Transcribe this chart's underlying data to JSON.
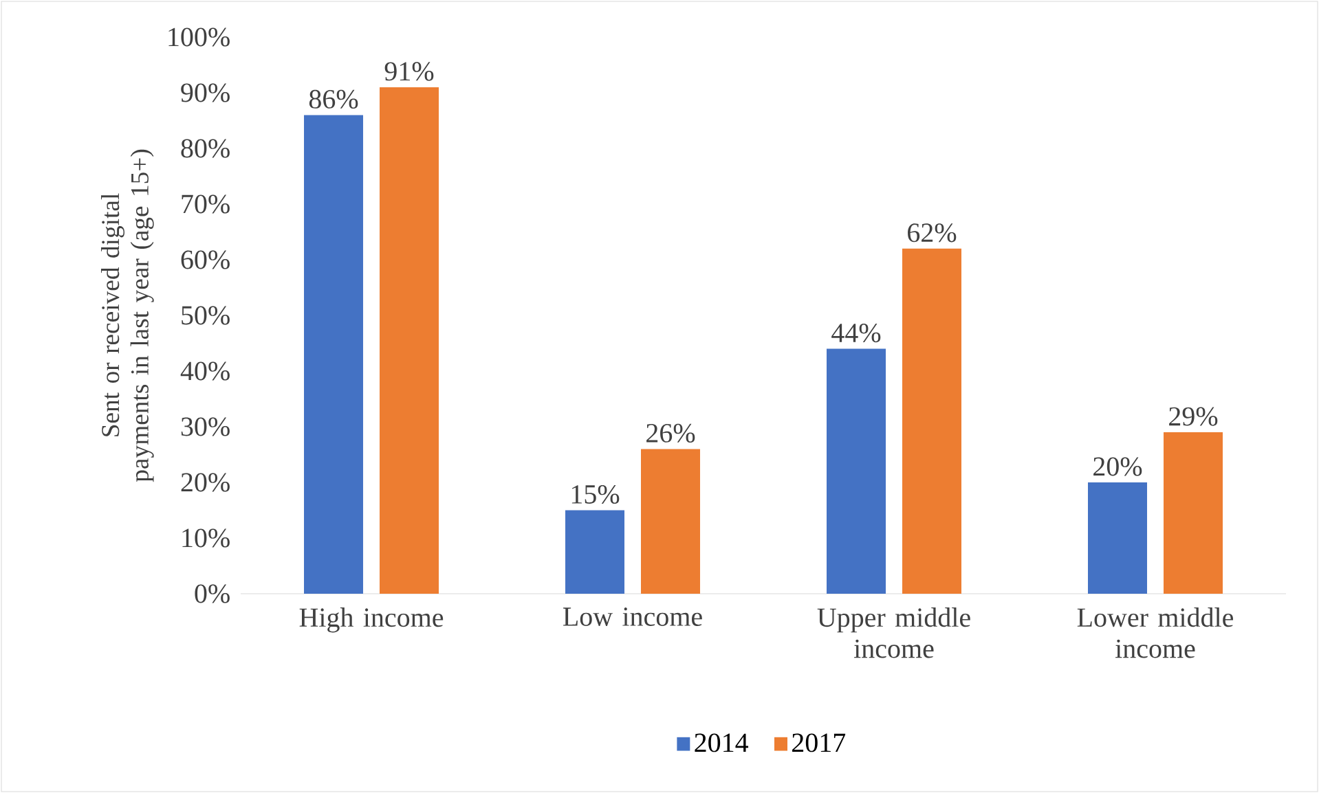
{
  "chart_data": {
    "type": "bar",
    "ylabel": "Sent or received digital payments in last year (age 15+)",
    "categories": [
      "High income",
      "Low income",
      "Upper middle income",
      "Lower middle income"
    ],
    "series": [
      {
        "name": "2014",
        "color": "#4472c4",
        "values": [
          86,
          15,
          44,
          20
        ],
        "value_labels": [
          "86%",
          "15%",
          "44%",
          "20%"
        ]
      },
      {
        "name": "2017",
        "color": "#ed7d31",
        "values": [
          91,
          26,
          62,
          29
        ],
        "value_labels": [
          "91%",
          "26%",
          "62%",
          "29%"
        ]
      }
    ],
    "ylim": [
      0,
      100
    ],
    "yticks": [
      {
        "value": 0,
        "label": "0%"
      },
      {
        "value": 10,
        "label": "10%"
      },
      {
        "value": 20,
        "label": "20%"
      },
      {
        "value": 30,
        "label": "30%"
      },
      {
        "value": 40,
        "label": "40%"
      },
      {
        "value": 50,
        "label": "50%"
      },
      {
        "value": 60,
        "label": "60%"
      },
      {
        "value": 70,
        "label": "70%"
      },
      {
        "value": 80,
        "label": "80%"
      },
      {
        "value": 90,
        "label": "90%"
      },
      {
        "value": 100,
        "label": "100%"
      }
    ],
    "legend": "bottom"
  }
}
